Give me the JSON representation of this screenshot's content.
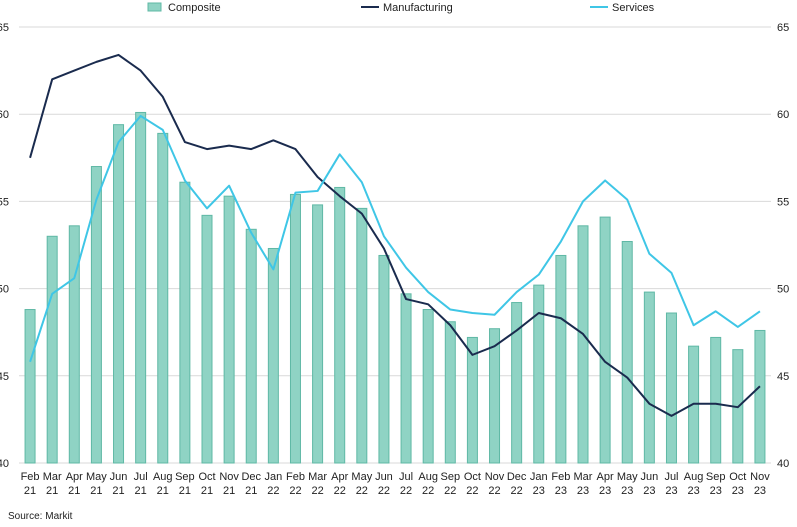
{
  "chart_data": {
    "type": "bar",
    "categories": [
      [
        "Feb",
        "21"
      ],
      [
        "Mar",
        "21"
      ],
      [
        "Apr",
        "21"
      ],
      [
        "May",
        "21"
      ],
      [
        "Jun",
        "21"
      ],
      [
        "Jul",
        "21"
      ],
      [
        "Aug",
        "21"
      ],
      [
        "Sep",
        "21"
      ],
      [
        "Oct",
        "21"
      ],
      [
        "Nov",
        "21"
      ],
      [
        "Dec",
        "21"
      ],
      [
        "Jan",
        "22"
      ],
      [
        "Feb",
        "22"
      ],
      [
        "Mar",
        "22"
      ],
      [
        "Apr",
        "22"
      ],
      [
        "May",
        "22"
      ],
      [
        "Jun",
        "22"
      ],
      [
        "Jul",
        "22"
      ],
      [
        "Aug",
        "22"
      ],
      [
        "Sep",
        "22"
      ],
      [
        "Oct",
        "22"
      ],
      [
        "Nov",
        "22"
      ],
      [
        "Dec",
        "22"
      ],
      [
        "Jan",
        "23"
      ],
      [
        "Feb",
        "23"
      ],
      [
        "Mar",
        "23"
      ],
      [
        "Apr",
        "23"
      ],
      [
        "May",
        "23"
      ],
      [
        "Jun",
        "23"
      ],
      [
        "Jul",
        "23"
      ],
      [
        "Aug",
        "23"
      ],
      [
        "Sep",
        "23"
      ],
      [
        "Oct",
        "23"
      ],
      [
        "Nov",
        "23"
      ]
    ],
    "ylim": [
      40,
      65
    ],
    "yticks": [
      40,
      45,
      50,
      55,
      60,
      65
    ],
    "grid": true,
    "legend_position": "top",
    "series": [
      {
        "name": "Composite",
        "type": "bar",
        "color": "#8fd3c4",
        "border_color": "#5fb8a5",
        "values": [
          48.8,
          53.0,
          53.6,
          57.0,
          59.4,
          60.1,
          58.9,
          56.1,
          54.2,
          55.3,
          53.4,
          52.3,
          55.4,
          54.8,
          55.8,
          54.6,
          51.9,
          49.7,
          48.8,
          48.1,
          47.2,
          47.7,
          49.2,
          50.2,
          51.9,
          53.6,
          54.1,
          52.7,
          49.8,
          48.6,
          46.7,
          47.2,
          46.5,
          47.6
        ]
      },
      {
        "name": "Manufacturing",
        "type": "line",
        "color": "#1a2b4e",
        "values": [
          57.5,
          62.0,
          62.5,
          63.0,
          63.4,
          62.5,
          61.0,
          58.4,
          58.0,
          58.2,
          58.0,
          58.5,
          58.0,
          56.4,
          55.3,
          54.3,
          52.3,
          49.4,
          49.1,
          47.9,
          46.2,
          46.7,
          47.6,
          48.6,
          48.3,
          47.4,
          45.8,
          44.9,
          43.4,
          42.7,
          43.4,
          43.4,
          43.2,
          44.4
        ]
      },
      {
        "name": "Services",
        "type": "line",
        "color": "#3fc6e6",
        "values": [
          45.8,
          49.7,
          50.6,
          55.1,
          58.4,
          59.9,
          59.1,
          56.2,
          54.6,
          55.9,
          53.2,
          51.1,
          55.5,
          55.6,
          57.7,
          56.1,
          53.0,
          51.2,
          49.8,
          48.8,
          48.6,
          48.5,
          49.8,
          50.8,
          52.7,
          55.0,
          56.2,
          55.1,
          52.0,
          50.9,
          47.9,
          48.7,
          47.8,
          48.7
        ]
      }
    ]
  },
  "source_text": "Source: Markit",
  "colors": {
    "grid": "#d9d9d9",
    "axis_text": "#222222"
  }
}
